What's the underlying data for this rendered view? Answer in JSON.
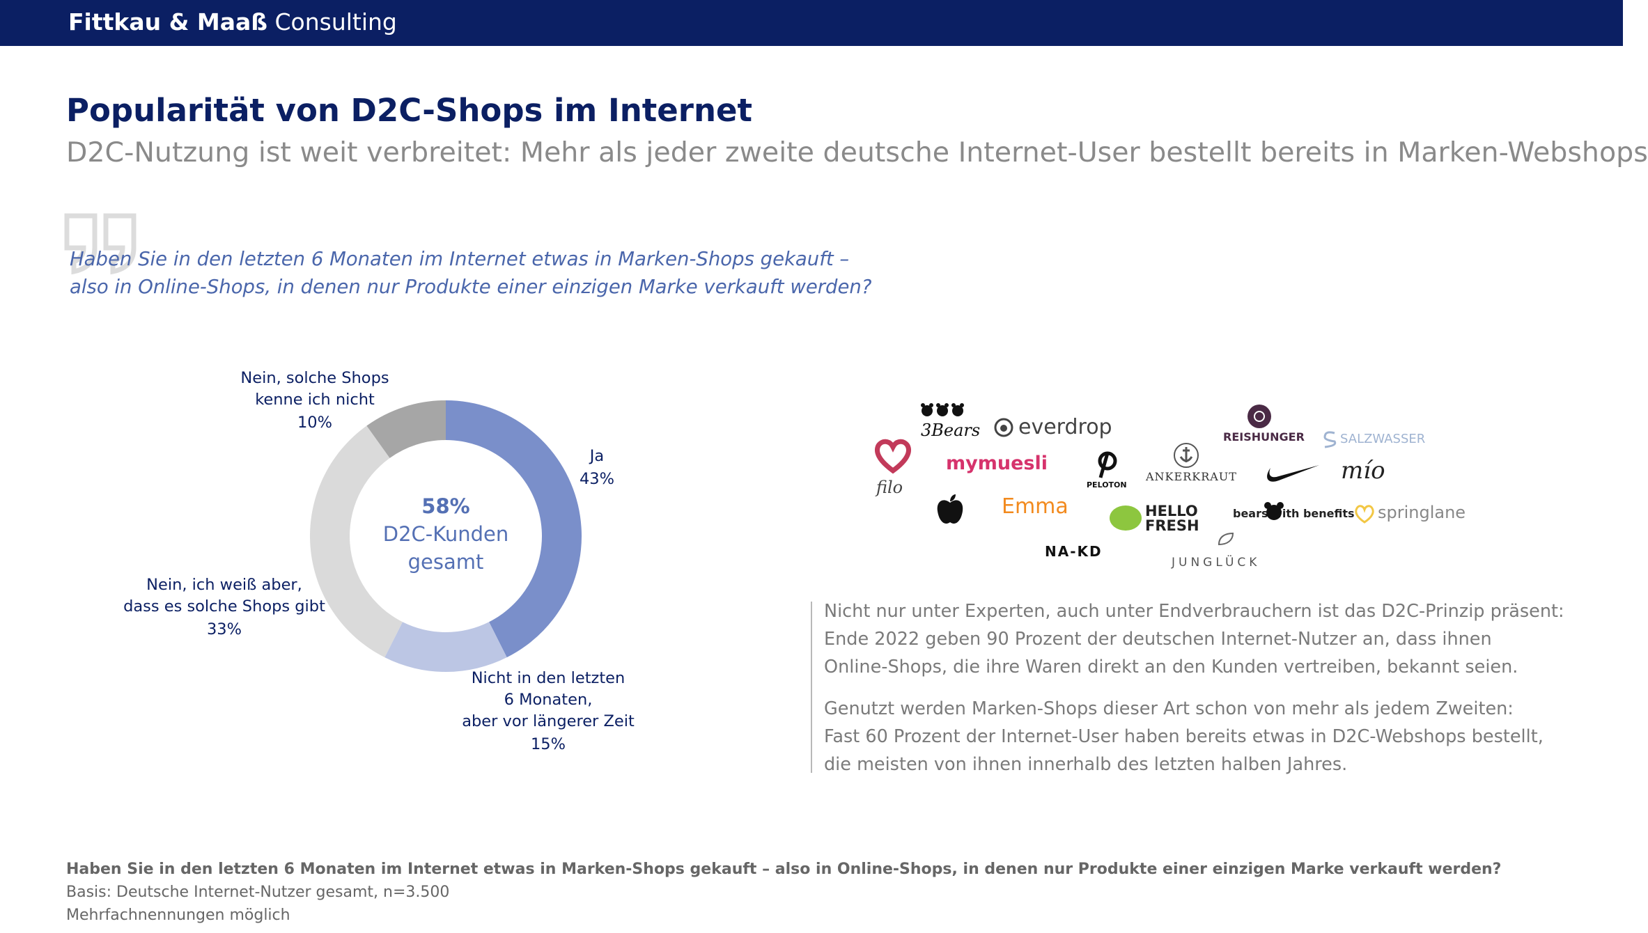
{
  "header": {
    "brand_bold": "Fittkau & Maaß",
    "brand_light": "Consulting",
    "bar_color": "#0b1f63"
  },
  "page": {
    "title": "Popularität von D2C-Shops im Internet",
    "subtitle": "D2C-Nutzung ist weit verbreitet: Mehr als jeder zweite deutsche Internet-User bestellt bereits in Marken-Webshops"
  },
  "question": {
    "line1": "Haben Sie in den letzten 6 Monaten im Internet etwas in Marken-Shops gekauft –",
    "line2": "also in Online-Shops, in denen nur Produkte einer einzigen Marke verkauft werden?"
  },
  "chart_data": {
    "type": "pie",
    "donut": true,
    "center_value": "58%",
    "center_label_line1": "D2C-Kunden",
    "center_label_line2": "gesamt",
    "slices": [
      {
        "label_lines": [
          "Ja"
        ],
        "value": 43,
        "value_label": "43%",
        "color": "#7a8fca"
      },
      {
        "label_lines": [
          "Nicht in den letzten",
          "6 Monaten,",
          "aber vor längerer Zeit"
        ],
        "value": 15,
        "value_label": "15%",
        "color": "#bcc6e4"
      },
      {
        "label_lines": [
          "Nein, ich weiß aber,",
          "dass es solche Shops gibt"
        ],
        "value": 33,
        "value_label": "33%",
        "color": "#dadada"
      },
      {
        "label_lines": [
          "Nein, solche Shops",
          "kenne ich nicht"
        ],
        "value": 10,
        "value_label": "10%",
        "color": "#a6a6a6"
      }
    ]
  },
  "logos": [
    {
      "name": "3bears",
      "text": "3Bears",
      "icon": "bear-heads-icon"
    },
    {
      "name": "everdrop",
      "text": "everdrop",
      "icon": "drop-ring-icon"
    },
    {
      "name": "reishunger",
      "text": "REISHUNGER",
      "icon": "rice-badge-icon"
    },
    {
      "name": "salzwasser",
      "text": "SALZWASSER",
      "icon": "s-wave-icon"
    },
    {
      "name": "filo",
      "text": "filo",
      "icon": "heart-icon"
    },
    {
      "name": "mymuesli",
      "text": "mymuesli"
    },
    {
      "name": "peloton",
      "text": "PELOTON",
      "icon": "peloton-p-icon"
    },
    {
      "name": "ankerkraut",
      "text": "ANKERKRAUT",
      "icon": "anchor-seal-icon"
    },
    {
      "name": "nike",
      "icon": "swoosh-icon"
    },
    {
      "name": "mio",
      "text": "mío"
    },
    {
      "name": "apple",
      "icon": "apple-icon"
    },
    {
      "name": "emma",
      "text": "Emma"
    },
    {
      "name": "hellofresh",
      "text": "HELLO FRESH",
      "icon": "lime-icon"
    },
    {
      "name": "bears-with-benefits",
      "text": "bears with benefits",
      "icon": "bear-icon"
    },
    {
      "name": "springlane",
      "text": "springlane",
      "icon": "heart-outline-icon"
    },
    {
      "name": "nakd",
      "text": "NA-KD"
    },
    {
      "name": "junglueck",
      "text": "JUNGLÜCK",
      "icon": "leaf-icon"
    }
  ],
  "right_text": {
    "p1": [
      "Nicht nur unter Experten, auch unter Endverbrauchern ist das D2C-Prinzip präsent:",
      "Ende 2022 geben 90 Prozent der deutschen Internet-Nutzer an, dass ihnen",
      "Online-Shops, die ihre Waren direkt an den Kunden vertreiben, bekannt seien."
    ],
    "p2": [
      "Genutzt werden Marken-Shops dieser Art schon von mehr als jedem Zweiten:",
      "Fast 60 Prozent der Internet-User haben bereits etwas in D2C-Webshops bestellt,",
      "die meisten von ihnen innerhalb des letzten halben Jahres."
    ]
  },
  "footer": {
    "question": "Haben Sie in den letzten 6 Monaten im Internet etwas in Marken-Shops gekauft – also in Online-Shops, in denen nur Produkte einer einzigen Marke verkauft werden?",
    "basis": "Basis: Deutsche Internet-Nutzer gesamt, n=3.500",
    "note": "Mehrfachnennungen möglich"
  }
}
